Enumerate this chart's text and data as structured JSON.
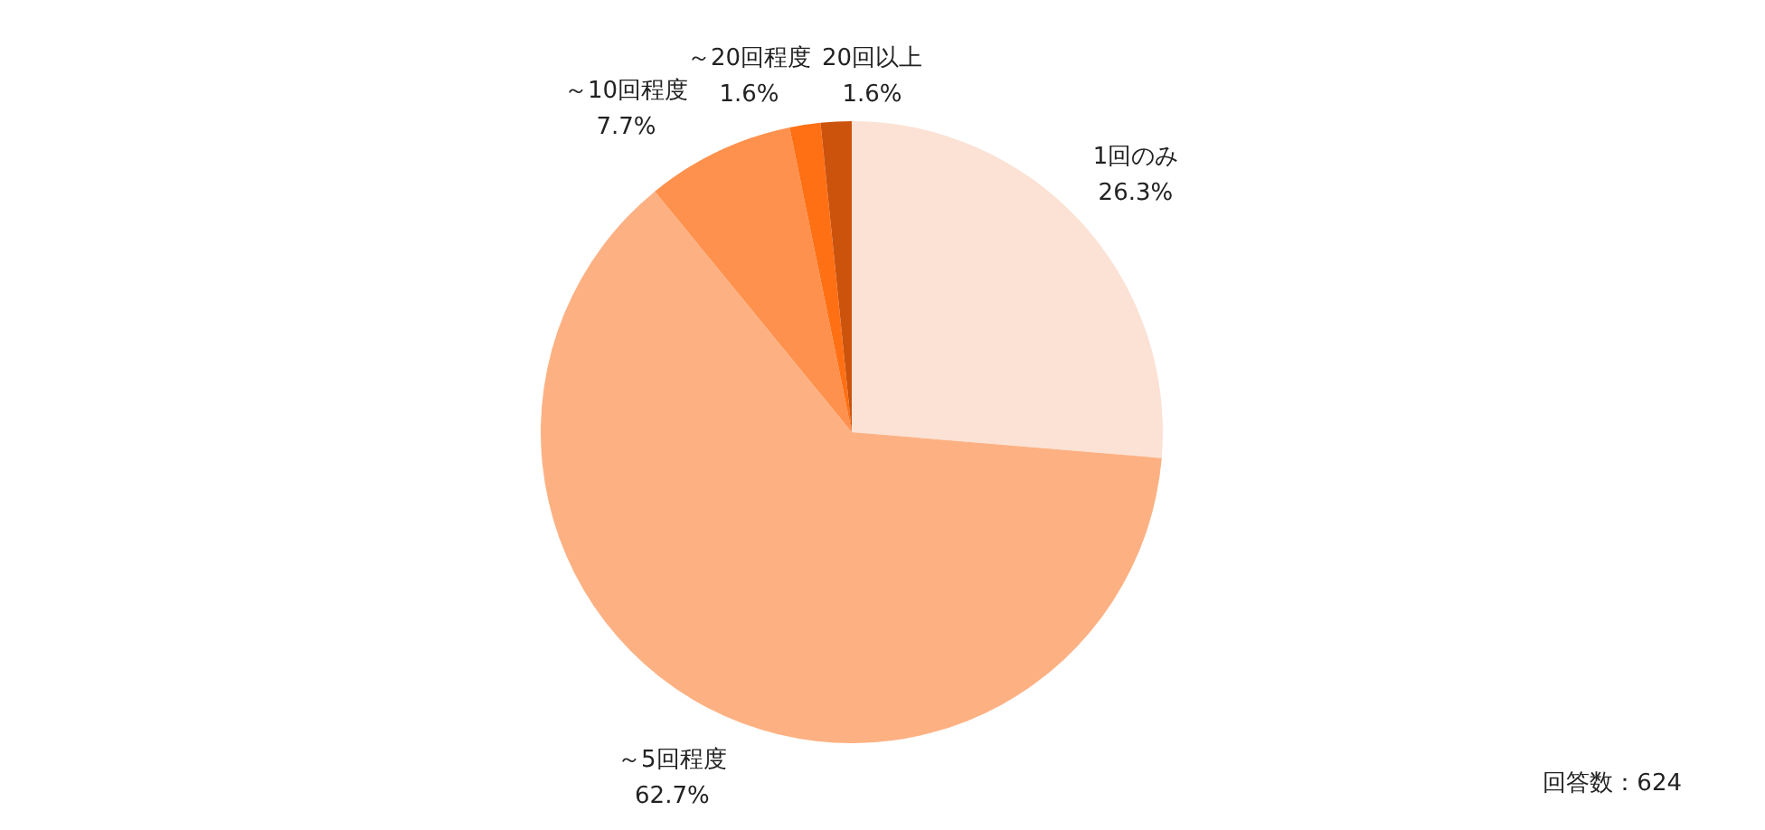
{
  "chart_data": {
    "type": "pie",
    "categories": [
      "1回のみ",
      "～5回程度",
      "～10回程度",
      "～20回程度",
      "20回以上"
    ],
    "values": [
      26.3,
      62.7,
      7.7,
      1.6,
      1.6
    ],
    "value_labels": [
      "26.3%",
      "62.7%",
      "7.7%",
      "1.6%",
      "1.6%"
    ],
    "colors": [
      "#fbe2d5",
      "#fdb183",
      "#fe914d",
      "#ff7014",
      "#cc530c"
    ],
    "annotations": [
      "回答数：624"
    ]
  }
}
